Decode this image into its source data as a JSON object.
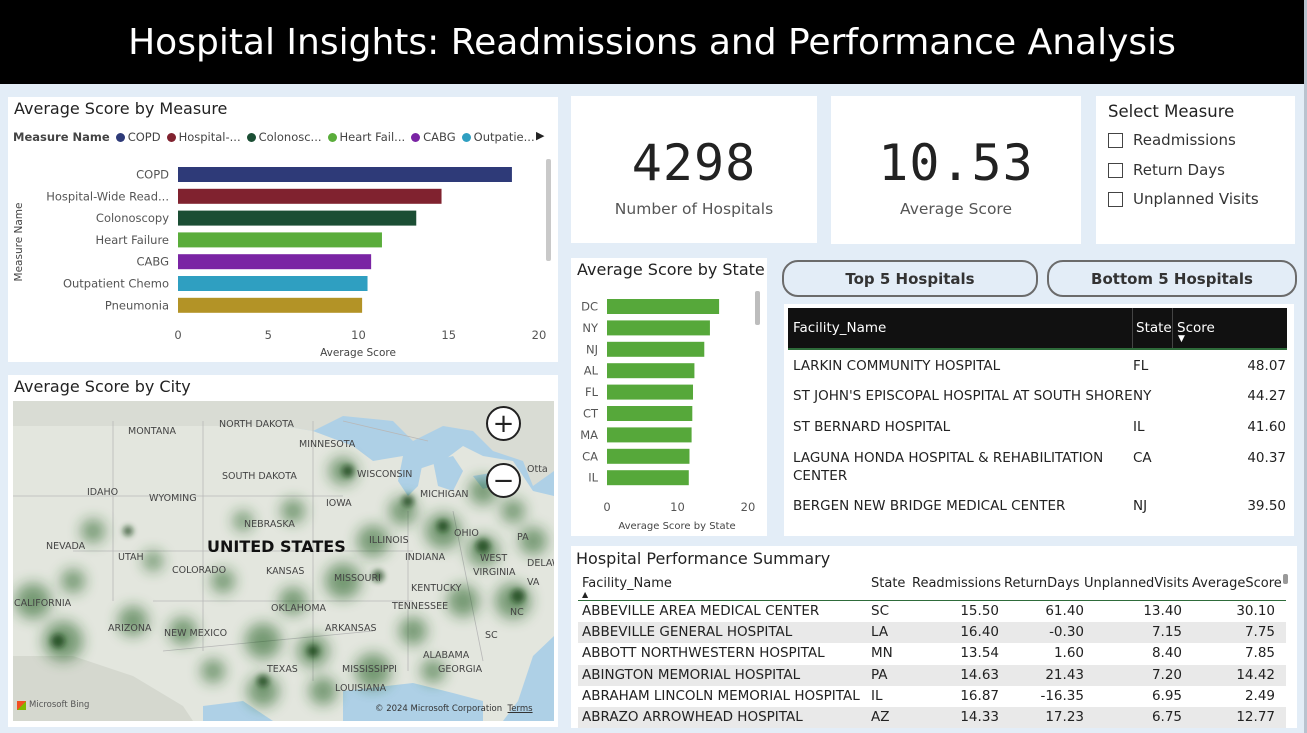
{
  "header": {
    "title": "Hospital Insights: Readmissions and Performance Analysis"
  },
  "measure_chart": {
    "title": "Average Score by Measure",
    "legend_title": "Measure Name",
    "legend_items": [
      {
        "label": "COPD",
        "color": "#2e3a78"
      },
      {
        "label": "Hospital-...",
        "color": "#80222f"
      },
      {
        "label": "Colonosc...",
        "color": "#1b4e34"
      },
      {
        "label": "Heart Fail...",
        "color": "#5aad3b"
      },
      {
        "label": "CABG",
        "color": "#7a24a4"
      },
      {
        "label": "Outpatie...",
        "color": "#2f9fc1"
      }
    ],
    "ylabel": "Measure Name",
    "xlabel": "Average Score",
    "ticks": [
      "0",
      "5",
      "10",
      "15",
      "20"
    ]
  },
  "kpis": {
    "hospitals": {
      "value": "4298",
      "label": "Number of Hospitals"
    },
    "avg_score": {
      "value": "10.53",
      "label": "Average Score"
    }
  },
  "slicer": {
    "title": "Select Measure",
    "options": [
      "Readmissions",
      "Return Days",
      "Unplanned Visits"
    ]
  },
  "state_chart": {
    "title": "Average Score by State",
    "xlabel": "Average Score by State",
    "ticks": [
      "0",
      "10",
      "20"
    ]
  },
  "buttons": {
    "top": "Top 5 Hospitals",
    "bottom": "Bottom 5 Hospitals"
  },
  "top_table": {
    "headers": [
      "Facility_Name",
      "State",
      "Score"
    ],
    "rows": [
      {
        "name": "LARKIN COMMUNITY HOSPITAL",
        "state": "FL",
        "score": "48.07"
      },
      {
        "name": "ST JOHN'S EPISCOPAL HOSPITAL AT SOUTH SHORE",
        "state": "NY",
        "score": "44.27"
      },
      {
        "name": "ST BERNARD HOSPITAL",
        "state": "IL",
        "score": "41.60"
      },
      {
        "name": "LAGUNA HONDA HOSPITAL & REHABILITATION",
        "name2": "CENTER",
        "state": "CA",
        "score": "40.37"
      },
      {
        "name": "BERGEN NEW BRIDGE MEDICAL CENTER",
        "state": "NJ",
        "score": "39.50"
      }
    ]
  },
  "map": {
    "title": "Average Score by City",
    "country_label": "UNITED STATES",
    "state_labels": [
      "MONTANA",
      "NORTH DAKOTA",
      "MINNESOTA",
      "SOUTH DAKOTA",
      "WISCONSIN",
      "MICHIGAN",
      "IDAHO",
      "WYOMING",
      "IOWA",
      "NEBRASKA",
      "ILLINOIS",
      "OHIO",
      "NEVADA",
      "UTAH",
      "COLORADO",
      "KANSAS",
      "MISSOURI",
      "INDIANA",
      "WEST",
      "VIRGINIA",
      "KENTUCKY",
      "CALIFORNIA",
      "TENNESSEE",
      "NC",
      "OKLAHOMA",
      "ARIZONA",
      "NEW MEXICO",
      "ARKANSAS",
      "SC",
      "ALABAMA",
      "TEXAS",
      "MISSISSIPPI",
      "GEORGIA",
      "LOUISIANA",
      "VA",
      "DELAWA",
      "PA",
      "Otta"
    ],
    "copyright": "© 2024 Microsoft Corporation",
    "terms": "Terms",
    "bing": "Microsoft Bing",
    "zoom_in": "+",
    "zoom_out": "−"
  },
  "summary": {
    "title": "Hospital Performance Summary",
    "headers": [
      "Facility_Name",
      "State",
      "Readmissions",
      "ReturnDays",
      "UnplannedVisits",
      "AverageScore"
    ],
    "rows": [
      [
        "ABBEVILLE AREA MEDICAL CENTER",
        "SC",
        "15.50",
        "61.40",
        "13.40",
        "30.10"
      ],
      [
        "ABBEVILLE GENERAL HOSPITAL",
        "LA",
        "16.40",
        "-0.30",
        "7.15",
        "7.75"
      ],
      [
        "ABBOTT NORTHWESTERN HOSPITAL",
        "MN",
        "13.54",
        "1.60",
        "8.40",
        "7.85"
      ],
      [
        "ABINGTON MEMORIAL HOSPITAL",
        "PA",
        "14.63",
        "21.43",
        "7.20",
        "14.42"
      ],
      [
        "ABRAHAM LINCOLN MEMORIAL HOSPITAL",
        "IL",
        "16.87",
        "-16.35",
        "6.95",
        "2.49"
      ],
      [
        "ABRAZO ARROWHEAD HOSPITAL",
        "AZ",
        "14.33",
        "17.23",
        "6.75",
        "12.77"
      ]
    ]
  },
  "chart_data": [
    {
      "type": "bar",
      "title": "Average Score by Measure",
      "orientation": "horizontal",
      "categories": [
        "COPD",
        "Hospital-Wide Read...",
        "Colonoscopy",
        "Heart Failure",
        "CABG",
        "Outpatient Chemo",
        "Pneumonia"
      ],
      "values": [
        18.5,
        14.6,
        13.2,
        11.3,
        10.7,
        10.5,
        10.2
      ],
      "colors": [
        "#2e3a78",
        "#80222f",
        "#1b4e34",
        "#5aad3b",
        "#7a24a4",
        "#2f9fc1",
        "#b39326"
      ],
      "xlabel": "Average Score",
      "ylabel": "Measure Name",
      "xlim": [
        0,
        20
      ]
    },
    {
      "type": "bar",
      "title": "Average Score by State",
      "orientation": "horizontal",
      "categories": [
        "DC",
        "NY",
        "NJ",
        "AL",
        "FL",
        "CT",
        "MA",
        "CA",
        "IL"
      ],
      "values": [
        15.9,
        14.6,
        13.8,
        12.4,
        12.2,
        12.1,
        12.0,
        11.7,
        11.6
      ],
      "color": "#56a83a",
      "xlabel": "Average Score by State",
      "xlim": [
        0,
        20
      ]
    }
  ]
}
